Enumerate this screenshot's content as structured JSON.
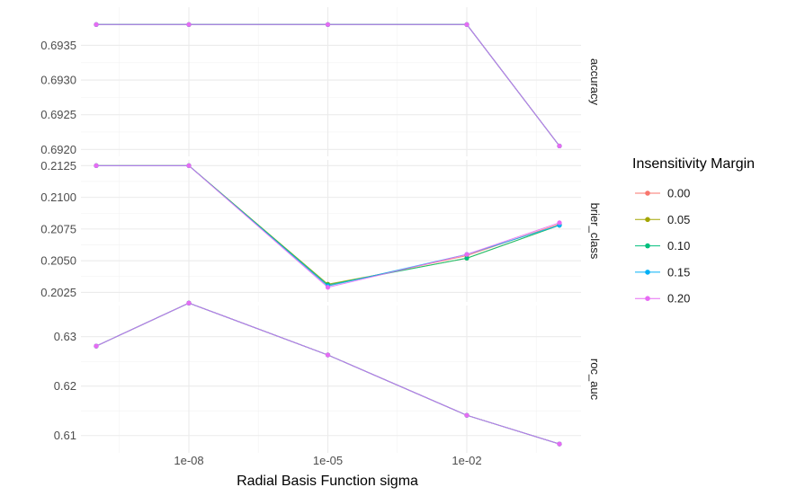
{
  "chart_data": {
    "type": "line",
    "xlabel": "Radial Basis Function sigma",
    "x_scale": "log10",
    "x": [
      1e-10,
      1e-08,
      1e-05,
      0.01,
      1
    ],
    "xlim": [
      1e-10,
      1
    ],
    "x_ticks": [
      {
        "value": 1e-08,
        "label": "1e-08"
      },
      {
        "value": 1e-05,
        "label": "1e-05"
      },
      {
        "value": 0.01,
        "label": "1e-02"
      }
    ],
    "x_minor": [
      3.16e-10,
      3.16e-07,
      0.000316,
      0.316
    ],
    "legend": {
      "title": "Insensitivity Margin",
      "position": "right",
      "entries": [
        {
          "label": "0.00",
          "color": "#F8766D"
        },
        {
          "label": "0.05",
          "color": "#A3A500"
        },
        {
          "label": "0.10",
          "color": "#00BF7D"
        },
        {
          "label": "0.15",
          "color": "#00B0F6"
        },
        {
          "label": "0.20",
          "color": "#E76BF3"
        }
      ]
    },
    "panels": [
      {
        "strip": "accuracy",
        "ylim": [
          0.6919,
          0.69405
        ],
        "y_ticks": [
          {
            "value": 0.692,
            "label": "0.6920"
          },
          {
            "value": 0.6925,
            "label": "0.6925"
          },
          {
            "value": 0.693,
            "label": "0.6930"
          },
          {
            "value": 0.6935,
            "label": "0.6935"
          }
        ],
        "series": [
          {
            "legend_index": 0,
            "values": [
              0.6938,
              0.6938,
              0.6938,
              0.6938,
              0.69205
            ]
          },
          {
            "legend_index": 1,
            "values": [
              0.6938,
              0.6938,
              0.6938,
              0.6938,
              0.69205
            ]
          },
          {
            "legend_index": 2,
            "values": [
              0.6938,
              0.6938,
              0.6938,
              0.6938,
              0.69205
            ]
          },
          {
            "legend_index": 3,
            "values": [
              0.6938,
              0.6938,
              0.6938,
              0.6938,
              0.69205
            ]
          },
          {
            "legend_index": 4,
            "values": [
              0.6938,
              0.6938,
              0.6938,
              0.6938,
              0.69205
            ]
          }
        ]
      },
      {
        "strip": "brier_class",
        "ylim": [
          0.20175,
          0.21295
        ],
        "y_ticks": [
          {
            "value": 0.2025,
            "label": "0.2025"
          },
          {
            "value": 0.205,
            "label": "0.2050"
          },
          {
            "value": 0.2075,
            "label": "0.2075"
          },
          {
            "value": 0.21,
            "label": "0.2100"
          },
          {
            "value": 0.2125,
            "label": "0.2125"
          }
        ],
        "series": [
          {
            "legend_index": 0,
            "values": [
              0.2125,
              0.2125,
              0.20305,
              0.2054,
              0.2079
            ]
          },
          {
            "legend_index": 1,
            "values": [
              0.2125,
              0.2125,
              0.20315,
              0.2052,
              0.2078
            ]
          },
          {
            "legend_index": 2,
            "values": [
              0.2125,
              0.2125,
              0.2031,
              0.2052,
              0.2078
            ]
          },
          {
            "legend_index": 3,
            "values": [
              0.2125,
              0.2125,
              0.203,
              0.2055,
              0.2078
            ]
          },
          {
            "legend_index": 4,
            "values": [
              0.2125,
              0.2125,
              0.2029,
              0.2055,
              0.208
            ]
          }
        ]
      },
      {
        "strip": "roc_auc",
        "ylim": [
          0.6065,
          0.6363
        ],
        "y_ticks": [
          {
            "value": 0.61,
            "label": "0.61"
          },
          {
            "value": 0.62,
            "label": "0.62"
          },
          {
            "value": 0.63,
            "label": "0.63"
          }
        ],
        "series": [
          {
            "legend_index": 0,
            "values": [
              0.6281,
              0.6368,
              0.6263,
              0.6141,
              0.6083
            ]
          },
          {
            "legend_index": 1,
            "values": [
              0.6281,
              0.6368,
              0.6263,
              0.6141,
              0.6083
            ]
          },
          {
            "legend_index": 2,
            "values": [
              0.6281,
              0.6368,
              0.6263,
              0.6141,
              0.6083
            ]
          },
          {
            "legend_index": 3,
            "values": [
              0.6281,
              0.6368,
              0.6263,
              0.6141,
              0.6083
            ]
          },
          {
            "legend_index": 4,
            "values": [
              0.6281,
              0.6368,
              0.6263,
              0.6141,
              0.6083
            ]
          }
        ]
      }
    ]
  }
}
